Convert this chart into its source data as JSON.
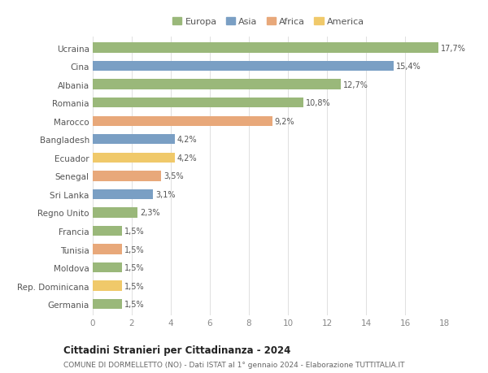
{
  "countries": [
    "Germania",
    "Rep. Dominicana",
    "Moldova",
    "Tunisia",
    "Francia",
    "Regno Unito",
    "Sri Lanka",
    "Senegal",
    "Ecuador",
    "Bangladesh",
    "Marocco",
    "Romania",
    "Albania",
    "Cina",
    "Ucraina"
  ],
  "values": [
    1.5,
    1.5,
    1.5,
    1.5,
    1.5,
    2.3,
    3.1,
    3.5,
    4.2,
    4.2,
    9.2,
    10.8,
    12.7,
    15.4,
    17.7
  ],
  "labels": [
    "1,5%",
    "1,5%",
    "1,5%",
    "1,5%",
    "1,5%",
    "2,3%",
    "3,1%",
    "3,5%",
    "4,2%",
    "4,2%",
    "9,2%",
    "10,8%",
    "12,7%",
    "15,4%",
    "17,7%"
  ],
  "colors": [
    "#9ab87a",
    "#f0c96a",
    "#9ab87a",
    "#e8a87a",
    "#9ab87a",
    "#9ab87a",
    "#7a9fc4",
    "#e8a87a",
    "#f0c96a",
    "#7a9fc4",
    "#e8a87a",
    "#9ab87a",
    "#9ab87a",
    "#7a9fc4",
    "#9ab87a"
  ],
  "legend": {
    "Europa": "#9ab87a",
    "Asia": "#7a9fc4",
    "Africa": "#e8a87a",
    "America": "#f0c96a"
  },
  "xlim": [
    0,
    18
  ],
  "xticks": [
    0,
    2,
    4,
    6,
    8,
    10,
    12,
    14,
    16,
    18
  ],
  "title": "Cittadini Stranieri per Cittadinanza - 2024",
  "subtitle": "COMUNE DI DORMELLETTO (NO) - Dati ISTAT al 1° gennaio 2024 - Elaborazione TUTTITALIA.IT",
  "background_color": "#ffffff",
  "bar_height": 0.55
}
